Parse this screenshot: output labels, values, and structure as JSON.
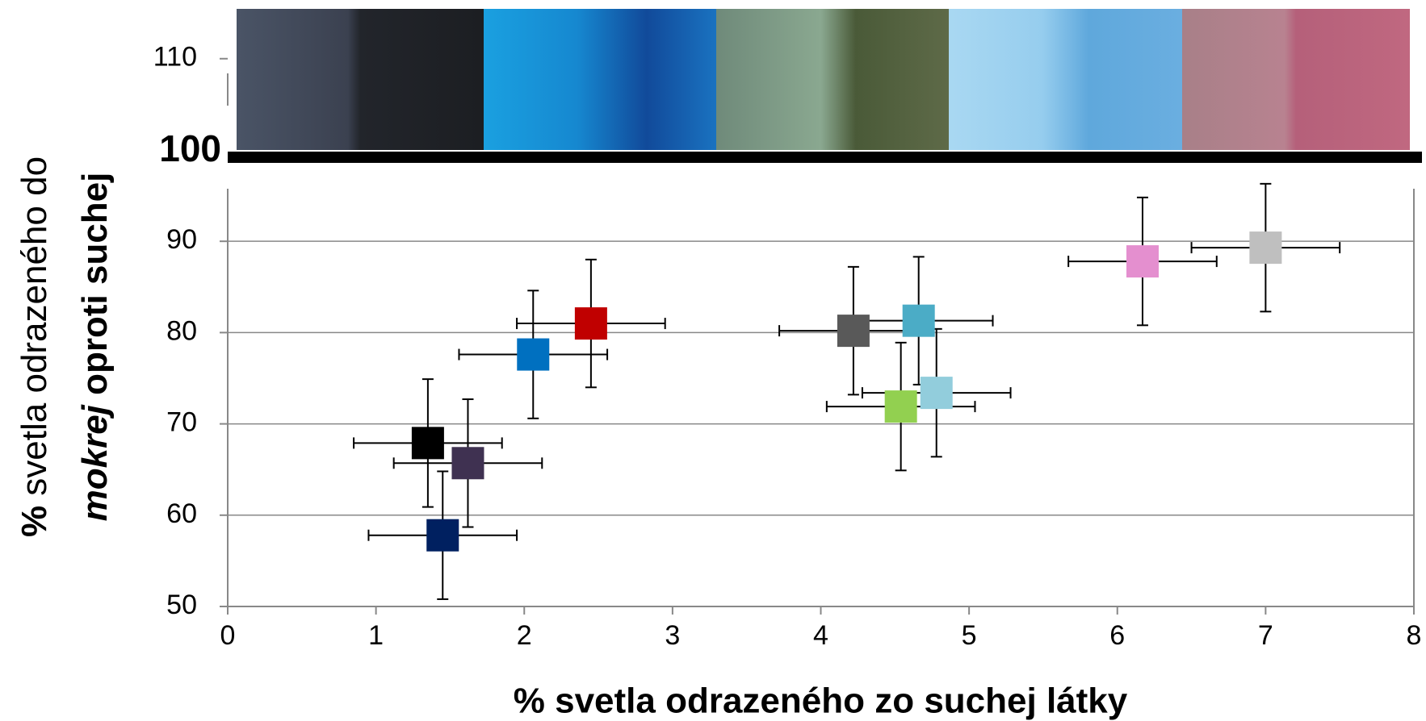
{
  "chart_data": {
    "type": "scatter",
    "x_label": "% svetla odrazeného zo suchej látky",
    "y_label": [
      [
        "%",
        " svetla odrazeného do"
      ],
      [
        "mokrej",
        " oproti suchej"
      ]
    ],
    "x": [
      1.35,
      1.62,
      1.45,
      2.06,
      2.45,
      4.22,
      4.66,
      4.54,
      4.78,
      6.17,
      7.0
    ],
    "values": [
      67.9,
      65.7,
      57.8,
      77.6,
      81.0,
      80.2,
      81.3,
      71.9,
      73.4,
      87.8,
      89.3
    ],
    "x_errors": [
      0.5,
      0.5,
      0.5,
      0.5,
      0.5,
      0.5,
      0.5,
      0.5,
      0.5,
      0.5,
      0.5
    ],
    "y_errors": [
      7,
      7,
      7,
      7,
      7,
      7,
      7,
      7,
      7,
      7,
      7
    ],
    "colors": [
      "#000000",
      "#3f3151",
      "#002060",
      "#0070c0",
      "#c00000",
      "#595959",
      "#4bacc6",
      "#92d050",
      "#92cddc",
      "#e48fcf",
      "#bfbfbf"
    ],
    "xlim": [
      0,
      8
    ],
    "xticks": [
      0,
      1,
      2,
      3,
      4,
      5,
      6,
      7,
      8
    ],
    "ylim": [
      50,
      115.5
    ],
    "yticks": [
      50,
      60,
      70,
      80,
      90,
      100,
      110
    ],
    "axis_break": 100,
    "grid": true
  }
}
